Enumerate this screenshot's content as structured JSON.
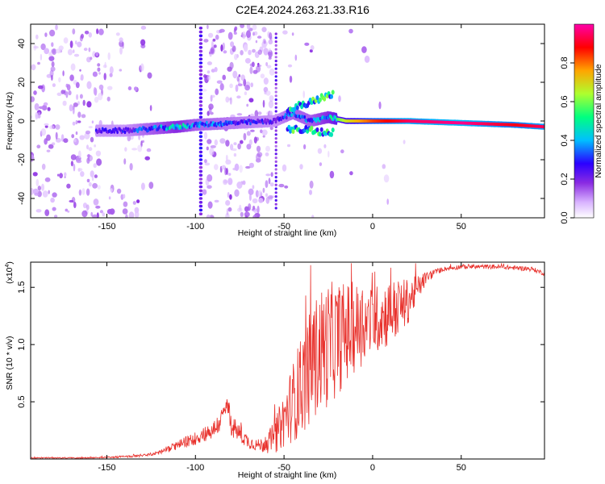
{
  "figure": {
    "title": "C2E4.2024.263.21.33.R16"
  },
  "chart_data": [
    {
      "type": "heatmap",
      "title": "C2E4.2024.263.21.33.R16",
      "xlabel": "Height of straight line (km)",
      "ylabel": "Frequency (Hz)",
      "xlim": [
        -193,
        97
      ],
      "ylim": [
        -50,
        50
      ],
      "xticks": [
        -150,
        -100,
        -50,
        0,
        50
      ],
      "yticks": [
        -40,
        -20,
        0,
        20,
        40
      ],
      "colorbar": {
        "label": "Normalized spectral amplitude",
        "range": [
          0,
          1
        ],
        "ticks": [
          0.0,
          0.2,
          0.4,
          0.6,
          0.8
        ],
        "colormap": [
          "#ffffff",
          "#d9b3ff",
          "#8a2be2",
          "#2b00ff",
          "#00bfff",
          "#00ff80",
          "#adff2f",
          "#ffa500",
          "#ff0000",
          "#ff00aa"
        ]
      },
      "ridge": {
        "description_series": "peak frequency vs height",
        "x": [
          -155,
          -140,
          -125,
          -110,
          -100,
          -55,
          -45,
          -35,
          -25,
          -15,
          0,
          20,
          50,
          80,
          97
        ],
        "y": [
          -5,
          -5,
          -4,
          -3,
          -2,
          0,
          4,
          0,
          2,
          0,
          0,
          0,
          -1,
          -2,
          -3
        ],
        "amplitude": [
          0.3,
          0.3,
          0.4,
          0.5,
          0.4,
          0.3,
          0.4,
          0.4,
          0.5,
          0.7,
          0.85,
          0.95,
          0.98,
          0.9,
          0.95
        ]
      }
    },
    {
      "type": "line",
      "xlabel": "Height of straight line (km)",
      "ylabel": "SNR (10 * v/v)",
      "y_multiplier": "(x10",
      "y_multiplier_exp": "4",
      "xlim": [
        -193,
        97
      ],
      "ylim": [
        0,
        1.72
      ],
      "xticks": [
        -150,
        -100,
        -50,
        0,
        50
      ],
      "yticks": [
        0.5,
        1.0,
        1.5
      ],
      "ytick_labels": [
        "0.5",
        "1.0",
        "1.5"
      ],
      "color": "#e8312c",
      "series": [
        {
          "x": [
            -193,
            -180,
            -170,
            -160,
            -150,
            -140,
            -130,
            -125,
            -120,
            -115,
            -110,
            -105,
            -100,
            -95,
            -90,
            -85,
            -82,
            -80,
            -75,
            -70,
            -65,
            -60,
            -55,
            -50,
            -45,
            -40,
            -35,
            -30,
            -25,
            -20,
            -15,
            -10,
            -5,
            0,
            5,
            10,
            15,
            20,
            25,
            30,
            35,
            40,
            50,
            60,
            70,
            80,
            90,
            97
          ],
          "values": [
            0.01,
            0.01,
            0.01,
            0.01,
            0.015,
            0.02,
            0.03,
            0.04,
            0.06,
            0.09,
            0.12,
            0.15,
            0.18,
            0.22,
            0.25,
            0.35,
            0.48,
            0.3,
            0.22,
            0.15,
            0.12,
            0.13,
            0.2,
            0.35,
            0.5,
            0.65,
            0.8,
            0.95,
            1.0,
            1.05,
            1.1,
            1.15,
            1.18,
            1.2,
            1.25,
            1.28,
            1.32,
            1.38,
            1.48,
            1.58,
            1.63,
            1.66,
            1.68,
            1.68,
            1.68,
            1.67,
            1.66,
            1.62
          ],
          "noise_amplitude": [
            0.005,
            0.005,
            0.005,
            0.005,
            0.005,
            0.01,
            0.01,
            0.015,
            0.02,
            0.03,
            0.04,
            0.05,
            0.06,
            0.07,
            0.08,
            0.1,
            0.1,
            0.1,
            0.08,
            0.06,
            0.05,
            0.08,
            0.15,
            0.25,
            0.35,
            0.45,
            0.5,
            0.55,
            0.55,
            0.5,
            0.45,
            0.4,
            0.35,
            0.3,
            0.3,
            0.3,
            0.25,
            0.2,
            0.12,
            0.06,
            0.03,
            0.02,
            0.02,
            0.02,
            0.02,
            0.02,
            0.02,
            0.02
          ]
        }
      ]
    }
  ]
}
